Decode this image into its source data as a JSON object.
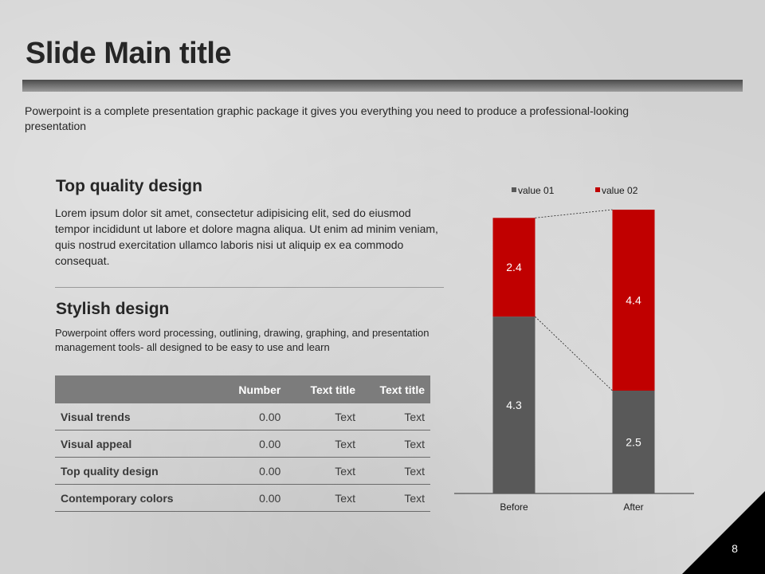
{
  "slide": {
    "title": "Slide Main title",
    "subtitle": "Powerpoint is a complete presentation graphic package it gives you everything you need to produce a professional-looking presentation",
    "page_number": "8"
  },
  "section1": {
    "heading": "Top quality design",
    "body": "Lorem ipsum dolor sit amet, consectetur adipisicing elit, sed do eiusmod tempor incididunt ut labore et dolore magna aliqua. Ut enim ad minim veniam, quis nostrud exercitation ullamco laboris nisi ut aliquip ex ea commodo consequat."
  },
  "section2": {
    "heading": "Stylish design",
    "body": "Powerpoint offers word processing, outlining, drawing, graphing, and presentation management tools- all designed to be easy to use and learn"
  },
  "table": {
    "headers": [
      "",
      "Number",
      "Text title",
      "Text title"
    ],
    "rows": [
      [
        "Visual trends",
        "0.00",
        "Text",
        "Text"
      ],
      [
        "Visual appeal",
        "0.00",
        "Text",
        "Text"
      ],
      [
        "Top quality design",
        "0.00",
        "Text",
        "Text"
      ],
      [
        "Contemporary colors",
        "0.00",
        "Text",
        "Text"
      ]
    ]
  },
  "chart_data": {
    "type": "bar",
    "stacked": true,
    "categories": [
      "Before",
      "After"
    ],
    "series": [
      {
        "name": "value 01",
        "values": [
          4.3,
          2.5
        ],
        "color": "#595959"
      },
      {
        "name": "value 02",
        "values": [
          2.4,
          4.4
        ],
        "color": "#c00000"
      }
    ],
    "legend": "top",
    "ylim": [
      0,
      6.9
    ],
    "grid": false,
    "title": "",
    "xlabel": "",
    "ylabel": ""
  }
}
